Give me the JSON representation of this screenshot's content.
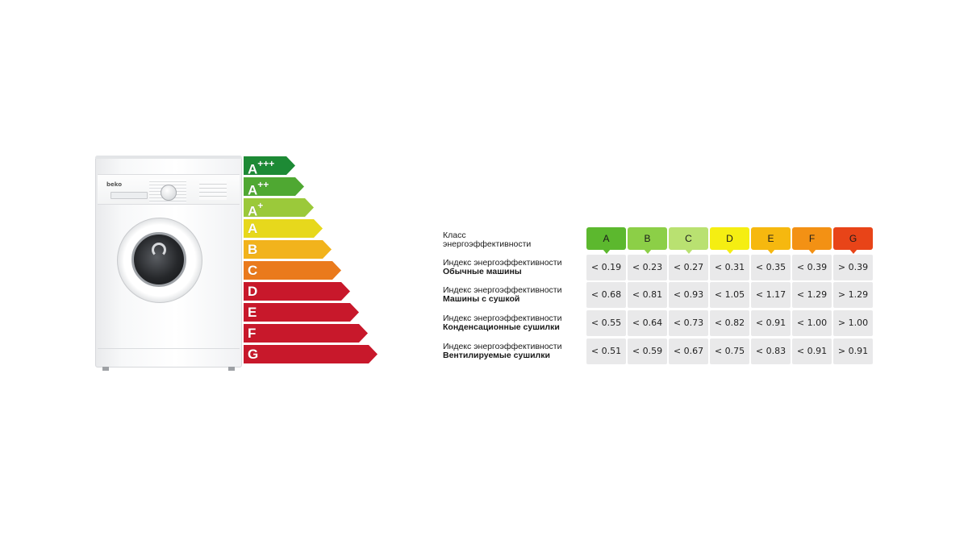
{
  "machine": {
    "brand": "beko"
  },
  "energy_label": {
    "classes": [
      {
        "main": "A",
        "sup": "+++",
        "color": "#1d8a35"
      },
      {
        "main": "A",
        "sup": "++",
        "color": "#4fa832"
      },
      {
        "main": "A",
        "sup": "+",
        "color": "#9bc93a"
      },
      {
        "main": "A",
        "sup": "",
        "color": "#e7d81c"
      },
      {
        "main": "B",
        "sup": "",
        "color": "#f2b31c"
      },
      {
        "main": "C",
        "sup": "",
        "color": "#ea7a1c"
      },
      {
        "main": "D",
        "sup": "",
        "color": "#c8182b"
      },
      {
        "main": "E",
        "sup": "",
        "color": "#c8182b"
      },
      {
        "main": "F",
        "sup": "",
        "color": "#c8182b"
      },
      {
        "main": "G",
        "sup": "",
        "color": "#c8182b"
      }
    ]
  },
  "table": {
    "class_header_line1": "Класс",
    "class_header_line2": "энергоэффективности",
    "classes": [
      {
        "label": "A",
        "color": "#5cb82e",
        "text_color": "#1a1a1a"
      },
      {
        "label": "B",
        "color": "#8ccf47",
        "text_color": "#1a1a1a"
      },
      {
        "label": "C",
        "color": "#b9e171",
        "text_color": "#1a1a1a"
      },
      {
        "label": "D",
        "color": "#f5ee12",
        "text_color": "#1a1a1a"
      },
      {
        "label": "E",
        "color": "#f6b80f",
        "text_color": "#1a1a1a"
      },
      {
        "label": "F",
        "color": "#f39114",
        "text_color": "#1a1a1a"
      },
      {
        "label": "G",
        "color": "#e84418",
        "text_color": "#1a1a1a"
      }
    ],
    "rows": [
      {
        "line1": "Индекс энергоэффективности",
        "line2": "Обычные машины",
        "values": [
          "< 0.19",
          "< 0.23",
          "< 0.27",
          "< 0.31",
          "< 0.35",
          "< 0.39",
          "> 0.39"
        ]
      },
      {
        "line1": "Индекс энергоэффективности",
        "line2": "Машины с сушкой",
        "values": [
          "< 0.68",
          "< 0.81",
          "< 0.93",
          "< 1.05",
          "< 1.17",
          "< 1.29",
          "> 1.29"
        ]
      },
      {
        "line1": "Индекс энергоэффективности",
        "line2": "Конденсационные сушилки",
        "values": [
          "< 0.55",
          "< 0.64",
          "< 0.73",
          "< 0.82",
          "< 0.91",
          "< 1.00",
          "> 1.00"
        ]
      },
      {
        "line1": "Индекс энергоэффективности",
        "line2": "Вентилируемые сушилки",
        "values": [
          "< 0.51",
          "< 0.59",
          "< 0.67",
          "< 0.75",
          "< 0.83",
          "< 0.91",
          "> 0.91"
        ]
      }
    ]
  }
}
